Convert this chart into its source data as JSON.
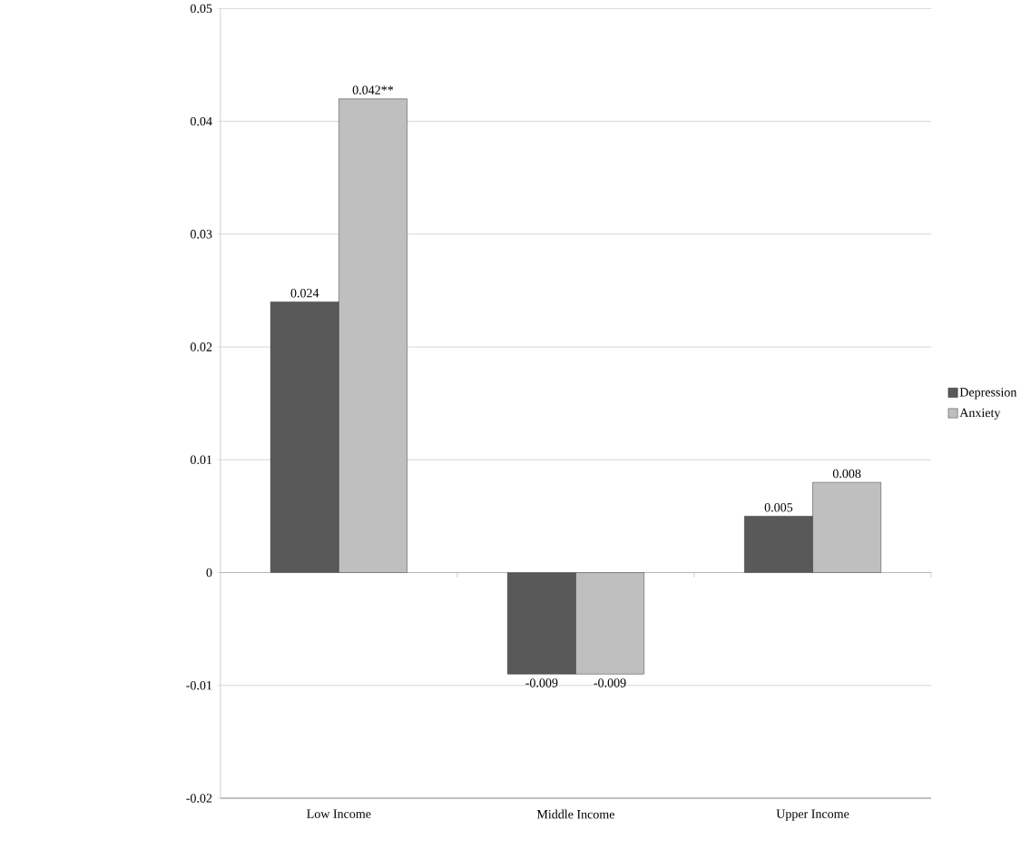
{
  "chart_data": {
    "type": "bar",
    "categories": [
      "Low Income",
      "Middle Income",
      "Upper Income"
    ],
    "series": [
      {
        "name": "Depression",
        "color": "#595959",
        "values": [
          0.024,
          -0.009,
          0.005
        ],
        "value_labels": [
          "0.024",
          "-0.009",
          "0.005"
        ]
      },
      {
        "name": "Anxiety",
        "color": "#bfbfbf",
        "values": [
          0.042,
          -0.009,
          0.008
        ],
        "value_labels": [
          "0.042**",
          "-0.009",
          "0.008"
        ]
      }
    ],
    "ylim": [
      -0.02,
      0.05
    ],
    "yticks": [
      -0.02,
      -0.01,
      0,
      0.01,
      0.02,
      0.03,
      0.04,
      0.05
    ],
    "grid": "y",
    "legend": "right"
  }
}
